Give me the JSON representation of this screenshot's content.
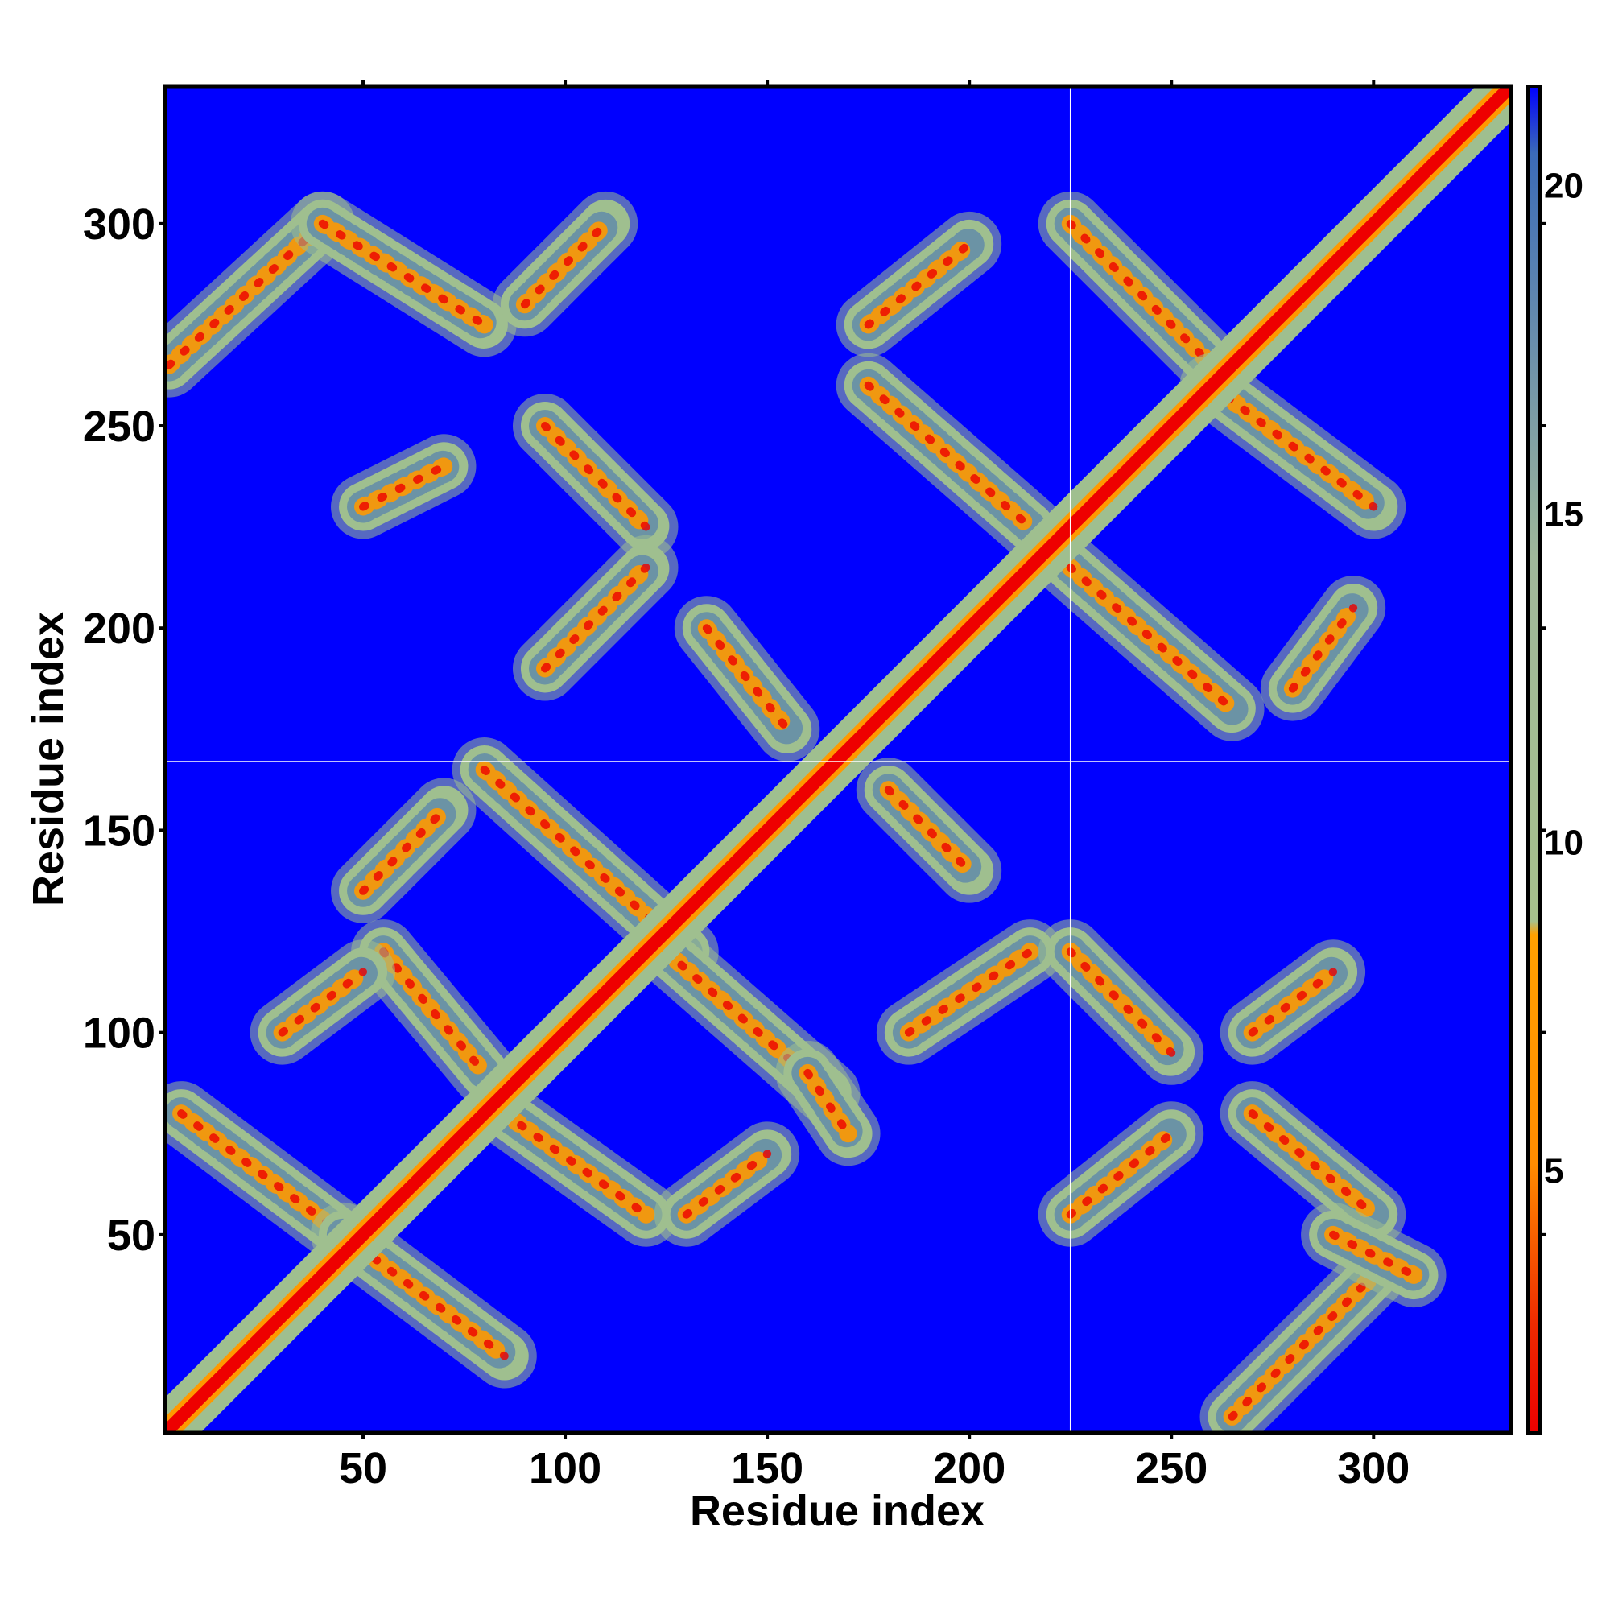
{
  "chart_data": {
    "type": "heatmap",
    "title": "",
    "xlabel": "Residue index",
    "ylabel": "Residue index",
    "residue_range": [
      1,
      334
    ],
    "xlim": [
      1,
      334
    ],
    "ylim": [
      1,
      334
    ],
    "x_ticks": [
      50,
      100,
      150,
      200,
      250,
      300
    ],
    "y_ticks": [
      50,
      100,
      150,
      200,
      250,
      300
    ],
    "x_tick_labels": [
      "50",
      "100",
      "150",
      "200",
      "250",
      "300"
    ],
    "y_tick_labels": [
      "50",
      "100",
      "150",
      "200",
      "250",
      "300"
    ],
    "colorbar": {
      "range": [
        1,
        21.5
      ],
      "ticks": [
        5,
        10,
        15,
        20
      ],
      "tick_labels": [
        "5",
        "10",
        "15",
        "20"
      ],
      "colors": {
        "near": "#ee0000",
        "close": "#ff9900",
        "mid": "#9fbf8f",
        "far": "#4a77b4",
        "background": "#0000ff"
      }
    },
    "guide_lines": {
      "vertical_x": 225,
      "horizontal_y": 167
    },
    "diagonal_band": {
      "from": [
        1,
        1
      ],
      "to": [
        334,
        334
      ]
    },
    "contact_bands": [
      {
        "from": [
          2,
          265
        ],
        "to": [
          40,
          300
        ],
        "type": "parallel"
      },
      {
        "from": [
          40,
          300
        ],
        "to": [
          80,
          275
        ],
        "type": "antiparallel"
      },
      {
        "from": [
          90,
          280
        ],
        "to": [
          110,
          300
        ],
        "type": "parallel"
      },
      {
        "from": [
          50,
          230
        ],
        "to": [
          70,
          240
        ],
        "type": "parallel"
      },
      {
        "from": [
          95,
          250
        ],
        "to": [
          120,
          225
        ],
        "type": "antiparallel"
      },
      {
        "from": [
          95,
          190
        ],
        "to": [
          120,
          215
        ],
        "type": "parallel"
      },
      {
        "from": [
          135,
          200
        ],
        "to": [
          155,
          175
        ],
        "type": "antiparallel"
      },
      {
        "from": [
          175,
          260
        ],
        "to": [
          215,
          225
        ],
        "type": "antiparallel"
      },
      {
        "from": [
          175,
          275
        ],
        "to": [
          200,
          295
        ],
        "type": "parallel"
      },
      {
        "from": [
          225,
          300
        ],
        "to": [
          260,
          265
        ],
        "type": "antiparallel"
      },
      {
        "from": [
          260,
          260
        ],
        "to": [
          300,
          230
        ],
        "type": "antiparallel"
      },
      {
        "from": [
          225,
          215
        ],
        "to": [
          265,
          180
        ],
        "type": "antiparallel"
      },
      {
        "from": [
          280,
          185
        ],
        "to": [
          295,
          205
        ],
        "type": "parallel"
      },
      {
        "from": [
          80,
          165
        ],
        "to": [
          130,
          120
        ],
        "type": "antiparallel"
      },
      {
        "from": [
          50,
          135
        ],
        "to": [
          70,
          155
        ],
        "type": "parallel"
      },
      {
        "from": [
          55,
          120
        ],
        "to": [
          80,
          90
        ],
        "type": "antiparallel"
      },
      {
        "from": [
          30,
          100
        ],
        "to": [
          50,
          115
        ],
        "type": "parallel"
      },
      {
        "from": [
          125,
          120
        ],
        "to": [
          165,
          85
        ],
        "type": "antiparallel"
      },
      {
        "from": [
          160,
          90
        ],
        "to": [
          170,
          75
        ],
        "type": "antiparallel"
      },
      {
        "from": [
          180,
          160
        ],
        "to": [
          200,
          140
        ],
        "type": "antiparallel"
      },
      {
        "from": [
          185,
          100
        ],
        "to": [
          215,
          120
        ],
        "type": "parallel"
      },
      {
        "from": [
          225,
          120
        ],
        "to": [
          250,
          95
        ],
        "type": "antiparallel"
      },
      {
        "from": [
          270,
          100
        ],
        "to": [
          290,
          115
        ],
        "type": "parallel"
      },
      {
        "from": [
          5,
          80
        ],
        "to": [
          45,
          50
        ],
        "type": "antiparallel"
      },
      {
        "from": [
          45,
          50
        ],
        "to": [
          85,
          20
        ],
        "type": "antiparallel"
      },
      {
        "from": [
          85,
          80
        ],
        "to": [
          120,
          55
        ],
        "type": "antiparallel"
      },
      {
        "from": [
          130,
          55
        ],
        "to": [
          150,
          70
        ],
        "type": "parallel"
      },
      {
        "from": [
          265,
          5
        ],
        "to": [
          300,
          40
        ],
        "type": "parallel"
      },
      {
        "from": [
          270,
          80
        ],
        "to": [
          300,
          55
        ],
        "type": "antiparallel"
      },
      {
        "from": [
          290,
          50
        ],
        "to": [
          310,
          40
        ],
        "type": "antiparallel"
      },
      {
        "from": [
          225,
          55
        ],
        "to": [
          250,
          75
        ],
        "type": "parallel"
      }
    ]
  }
}
